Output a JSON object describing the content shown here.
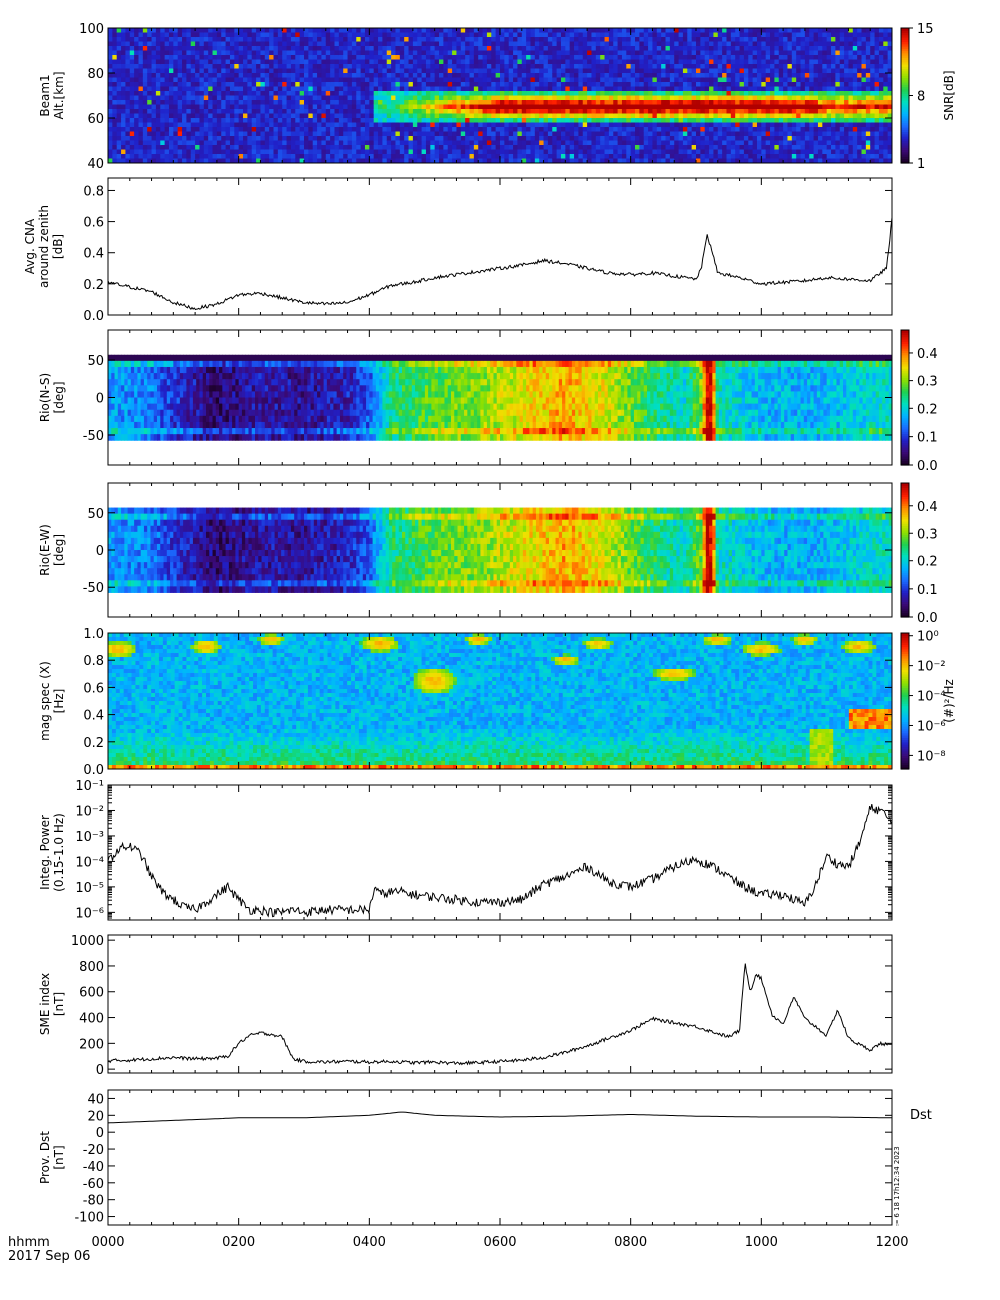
{
  "footer": {
    "time_label": "hhmm",
    "date_label": "2017 Sep 06",
    "side_stamp": "⩴ 6 18 17h12:34 2023"
  },
  "colors": {
    "colormap": [
      "#1a0024",
      "#3b0a78",
      "#2020c8",
      "#1a6cff",
      "#00b4ff",
      "#00e0c0",
      "#20d050",
      "#90e000",
      "#f0e000",
      "#ff9000",
      "#ff2000",
      "#b00000"
    ]
  },
  "chart_data": [
    {
      "type": "heatmap",
      "panel": "beam1",
      "ylabel": [
        "Beam1",
        "Alt.[km]"
      ],
      "yticks": [
        "100",
        "80",
        "60",
        "40"
      ],
      "ylim": [
        40,
        100
      ],
      "xlim": [
        0,
        720
      ],
      "colorbar": {
        "label": "SNR[dB]",
        "ticks": [
          "15",
          "8",
          "1"
        ],
        "range": [
          1,
          15
        ]
      },
      "features": {
        "echo_layer_alt_km": [
          57,
          72
        ],
        "echo_start_min": 240,
        "echo_peak_min": [
          420,
          600
        ]
      }
    },
    {
      "type": "line",
      "panel": "cna",
      "ylabel": [
        "Avg. CNA",
        "around zenith",
        "[dB]"
      ],
      "yticks": [
        "0.8",
        "0.6",
        "0.4",
        "0.2",
        "0.0"
      ],
      "ylim": [
        0,
        0.88
      ],
      "xlim": [
        0,
        720
      ],
      "x": [
        0,
        20,
        40,
        60,
        80,
        100,
        120,
        140,
        160,
        180,
        200,
        220,
        240,
        260,
        280,
        300,
        320,
        340,
        360,
        380,
        400,
        420,
        440,
        460,
        480,
        500,
        520,
        540,
        545,
        550,
        555,
        560,
        580,
        600,
        620,
        640,
        660,
        680,
        700,
        715,
        720
      ],
      "y": [
        0.21,
        0.18,
        0.15,
        0.08,
        0.04,
        0.07,
        0.13,
        0.14,
        0.11,
        0.08,
        0.07,
        0.08,
        0.13,
        0.19,
        0.21,
        0.24,
        0.26,
        0.28,
        0.3,
        0.32,
        0.35,
        0.33,
        0.3,
        0.27,
        0.26,
        0.27,
        0.25,
        0.23,
        0.3,
        0.52,
        0.4,
        0.27,
        0.24,
        0.2,
        0.21,
        0.22,
        0.24,
        0.23,
        0.22,
        0.3,
        0.62
      ]
    },
    {
      "type": "heatmap",
      "panel": "rio-ns",
      "ylabel": [
        "Rio(N-S)",
        "[deg]"
      ],
      "yticks": [
        "50",
        "0",
        "-50"
      ],
      "ylim": [
        -90,
        90
      ],
      "xlim": [
        0,
        720
      ],
      "colorbar": {
        "ticks": [
          "0.4",
          "0.3",
          "0.2",
          "0.1",
          "0.0"
        ],
        "range": [
          0,
          0.48
        ]
      },
      "profile_x": [
        0,
        40,
        60,
        100,
        140,
        180,
        220,
        240,
        260,
        300,
        340,
        380,
        420,
        460,
        500,
        530,
        545,
        550,
        555,
        560,
        580,
        600,
        640,
        680,
        720
      ],
      "profile_v": [
        0.16,
        0.14,
        0.1,
        0.04,
        0.07,
        0.06,
        0.08,
        0.12,
        0.24,
        0.28,
        0.3,
        0.34,
        0.38,
        0.33,
        0.25,
        0.21,
        0.3,
        0.48,
        0.46,
        0.22,
        0.2,
        0.18,
        0.17,
        0.19,
        0.22
      ]
    },
    {
      "type": "heatmap",
      "panel": "rio-ew",
      "ylabel": [
        "Rio(E-W)",
        "[deg]"
      ],
      "yticks": [
        "50",
        "0",
        "-50"
      ],
      "ylim": [
        -90,
        90
      ],
      "xlim": [
        0,
        720
      ],
      "colorbar": {
        "ticks": [
          "0.4",
          "0.3",
          "0.2",
          "0.1",
          "0.0"
        ],
        "range": [
          0,
          0.48
        ]
      },
      "profile_x": [
        0,
        40,
        60,
        100,
        140,
        180,
        220,
        240,
        260,
        300,
        340,
        380,
        420,
        460,
        500,
        530,
        545,
        550,
        555,
        560,
        580,
        600,
        640,
        680,
        720
      ],
      "profile_v": [
        0.16,
        0.14,
        0.1,
        0.04,
        0.07,
        0.06,
        0.08,
        0.12,
        0.24,
        0.28,
        0.3,
        0.34,
        0.38,
        0.33,
        0.25,
        0.21,
        0.3,
        0.48,
        0.46,
        0.22,
        0.2,
        0.18,
        0.17,
        0.19,
        0.22
      ]
    },
    {
      "type": "heatmap",
      "panel": "mag-spec",
      "ylabel": [
        "mag spec (X)",
        "[Hz]"
      ],
      "yticks": [
        "1.0",
        "0.8",
        "0.6",
        "0.4",
        "0.2",
        "0.0"
      ],
      "ylim": [
        0,
        1.0
      ],
      "xlim": [
        0,
        720
      ],
      "colorbar": {
        "label": "(#)²/Hz",
        "ticks": [
          "10⁰",
          "10⁻²",
          "10⁻⁴",
          "10⁻⁶",
          "10⁻⁸"
        ],
        "range_log": [
          -9,
          0
        ]
      }
    },
    {
      "type": "line",
      "panel": "integ-power",
      "ylabel": [
        "Integ. Power",
        "(0.15-1.0 Hz)"
      ],
      "yticks": [
        "10⁻¹",
        "10⁻²",
        "10⁻³",
        "10⁻⁴",
        "10⁻⁵",
        "10⁻⁶"
      ],
      "ylim_log": [
        -6.3,
        -1
      ],
      "xlim": [
        0,
        720
      ],
      "x": [
        0,
        10,
        20,
        30,
        40,
        50,
        60,
        70,
        80,
        90,
        100,
        110,
        120,
        130,
        140,
        150,
        160,
        170,
        180,
        200,
        220,
        240,
        245,
        250,
        260,
        270,
        280,
        300,
        320,
        340,
        360,
        380,
        400,
        420,
        440,
        460,
        480,
        500,
        520,
        540,
        560,
        580,
        600,
        620,
        640,
        650,
        660,
        670,
        680,
        690,
        700,
        710,
        720
      ],
      "y_log10": [
        -4,
        -3.5,
        -3.4,
        -3.7,
        -4.6,
        -5.2,
        -5.5,
        -5.8,
        -5.9,
        -5.6,
        -5.3,
        -5.0,
        -5.5,
        -5.9,
        -5.9,
        -6.0,
        -6.0,
        -5.9,
        -6.0,
        -5.9,
        -5.9,
        -5.9,
        -5.0,
        -5.3,
        -5.2,
        -5.2,
        -5.3,
        -5.4,
        -5.5,
        -5.6,
        -5.6,
        -5.5,
        -4.9,
        -4.6,
        -4.2,
        -4.8,
        -5.0,
        -4.7,
        -4.2,
        -3.9,
        -4.3,
        -4.9,
        -5.3,
        -5.3,
        -5.7,
        -4.9,
        -3.8,
        -4.1,
        -4.2,
        -3.3,
        -1.9,
        -2.0,
        -2.5
      ]
    },
    {
      "type": "line",
      "panel": "sme",
      "ylabel": [
        "SME index",
        "[nT]"
      ],
      "yticks": [
        "1000",
        "800",
        "600",
        "400",
        "200",
        "0"
      ],
      "ylim": [
        -30,
        1040
      ],
      "xlim": [
        0,
        720
      ],
      "x": [
        0,
        20,
        40,
        60,
        80,
        100,
        110,
        120,
        130,
        140,
        150,
        160,
        170,
        180,
        200,
        220,
        240,
        260,
        280,
        300,
        320,
        340,
        360,
        380,
        400,
        420,
        440,
        460,
        480,
        500,
        540,
        570,
        580,
        585,
        590,
        595,
        600,
        610,
        620,
        630,
        640,
        650,
        660,
        670,
        680,
        690,
        700,
        710,
        720
      ],
      "y": [
        65,
        70,
        80,
        90,
        80,
        85,
        100,
        200,
        260,
        280,
        270,
        250,
        80,
        60,
        55,
        60,
        55,
        60,
        50,
        55,
        45,
        50,
        60,
        70,
        90,
        130,
        180,
        240,
        300,
        390,
        330,
        250,
        300,
        820,
        600,
        740,
        700,
        420,
        350,
        560,
        390,
        330,
        260,
        460,
        240,
        190,
        150,
        200,
        180
      ]
    },
    {
      "type": "line",
      "panel": "dst",
      "ylabel": [
        "Prov. Dst",
        "[nT]"
      ],
      "legend": "Dst",
      "yticks": [
        "40",
        "20",
        "0",
        "-20",
        "-40",
        "-60",
        "-80",
        "-100"
      ],
      "ylim": [
        -110,
        50
      ],
      "xlim": [
        0,
        720
      ],
      "xticks": [
        "0000",
        "0200",
        "0400",
        "0600",
        "0800",
        "1000",
        "1200"
      ],
      "x": [
        0,
        60,
        120,
        180,
        240,
        270,
        300,
        360,
        420,
        480,
        540,
        600,
        660,
        720
      ],
      "y": [
        11,
        14,
        17,
        17,
        20,
        24,
        20,
        18,
        19,
        21,
        19,
        18,
        18,
        17
      ]
    }
  ]
}
